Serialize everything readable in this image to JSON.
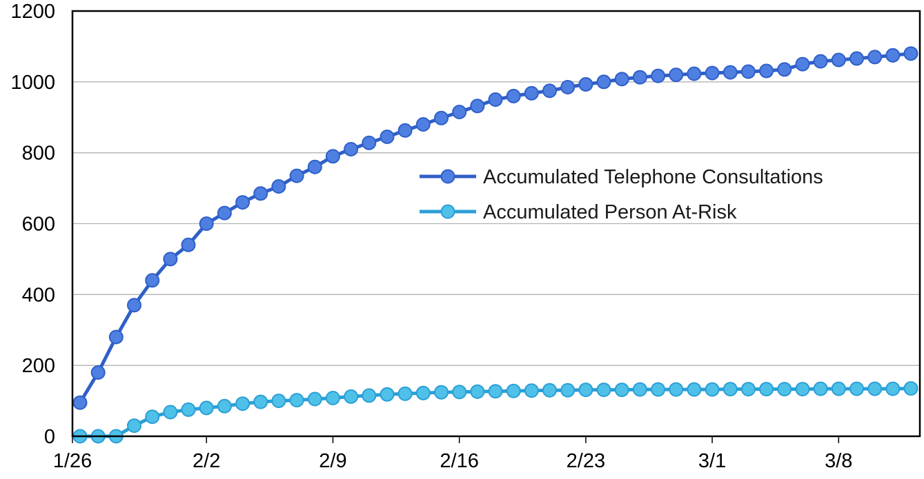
{
  "chart_data": {
    "type": "line",
    "title": "",
    "xlabel": "",
    "ylabel": "",
    "ylim": [
      0,
      1200
    ],
    "yticks": [
      "0",
      "200",
      "400",
      "600",
      "800",
      "1000",
      "1200"
    ],
    "xtick_labels": [
      "1/26",
      "2/2",
      "2/9",
      "2/16",
      "2/23",
      "3/1",
      "3/8"
    ],
    "x": [
      "1/26",
      "1/27",
      "1/28",
      "1/29",
      "1/30",
      "1/31",
      "2/1",
      "2/2",
      "2/3",
      "2/4",
      "2/5",
      "2/6",
      "2/7",
      "2/8",
      "2/9",
      "2/10",
      "2/11",
      "2/12",
      "2/13",
      "2/14",
      "2/15",
      "2/16",
      "2/17",
      "2/18",
      "2/19",
      "2/20",
      "2/21",
      "2/22",
      "2/23",
      "2/24",
      "2/25",
      "2/26",
      "2/27",
      "2/28",
      "2/29",
      "3/1",
      "3/2",
      "3/3",
      "3/4",
      "3/5",
      "3/6",
      "3/7",
      "3/8",
      "3/9",
      "3/10",
      "3/11",
      "3/12"
    ],
    "grid": true,
    "legend_position": "center-right",
    "series": [
      {
        "name": "Accumulated Telephone Consultations",
        "color": "#2f5fc8",
        "marker_color": "#4f7fe0",
        "values": [
          95,
          180,
          280,
          370,
          440,
          500,
          540,
          600,
          630,
          660,
          685,
          705,
          735,
          760,
          790,
          810,
          828,
          845,
          863,
          880,
          898,
          915,
          932,
          950,
          960,
          968,
          975,
          985,
          993,
          1000,
          1008,
          1013,
          1017,
          1020,
          1023,
          1025,
          1027,
          1029,
          1031,
          1035,
          1050,
          1058,
          1062,
          1066,
          1070,
          1075,
          1080
        ]
      },
      {
        "name": "Accumulated Person At-Risk",
        "color": "#2a9fd6",
        "marker_color": "#4fc0e8",
        "values": [
          0,
          0,
          0,
          30,
          55,
          68,
          75,
          80,
          85,
          92,
          97,
          100,
          102,
          105,
          108,
          112,
          115,
          118,
          120,
          122,
          124,
          125,
          126,
          127,
          128,
          129,
          130,
          130,
          131,
          131,
          131,
          132,
          132,
          132,
          132,
          132,
          133,
          133,
          133,
          133,
          133,
          134,
          134,
          134,
          134,
          134,
          135
        ]
      }
    ]
  }
}
